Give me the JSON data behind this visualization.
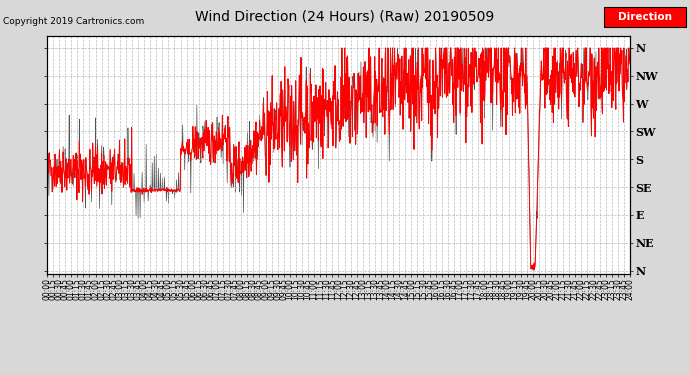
{
  "title": "Wind Direction (24 Hours) (Raw) 20190509",
  "copyright": "Copyright 2019 Cartronics.com",
  "legend_label": "Direction",
  "line_color": "#FF0000",
  "secondary_color": "#333333",
  "bg_color": "#D8D8D8",
  "plot_bg": "#FFFFFF",
  "grid_color": "#AAAAAA",
  "ytick_labels": [
    "N",
    "NW",
    "W",
    "SW",
    "S",
    "SE",
    "E",
    "NE",
    "N"
  ],
  "ytick_values": [
    360,
    315,
    270,
    225,
    180,
    135,
    90,
    45,
    0
  ],
  "ylim": [
    -5,
    380
  ],
  "title_fontsize": 10,
  "copyright_fontsize": 6.5,
  "tick_fontsize": 5.5,
  "ytick_fontsize": 8
}
